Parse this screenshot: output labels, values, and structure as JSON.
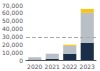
{
  "chart_data": {
    "type": "bar",
    "stacked": true,
    "categories": [
      "2020",
      "2021",
      "2022",
      "2023"
    ],
    "series": [
      {
        "color": "#1a2e4a",
        "values": [
          500,
          1500,
          8000,
          22000
        ]
      },
      {
        "color": "#b8bfc6",
        "values": [
          3000,
          6500,
          10000,
          38000
        ]
      },
      {
        "color": "#f5c518",
        "values": [
          0,
          0,
          1500,
          5000
        ]
      }
    ],
    "reference_line": {
      "y": 29400,
      "color": "#aaaaaa",
      "line_style": "dashed"
    },
    "ylim": [
      0,
      70000
    ],
    "yticks": [
      0,
      {
        "value": 10000,
        "label": "10,000"
      },
      {
        "value": 20000,
        "label": "20,000"
      },
      {
        "value": 30000,
        "label": "30,000"
      },
      {
        "value": 40000,
        "label": "40,000"
      },
      {
        "value": 50000,
        "label": "50,000"
      },
      {
        "value": 60000,
        "label": "60,000"
      },
      {
        "value": 70000,
        "label": "70,000"
      }
    ],
    "grid": false
  }
}
